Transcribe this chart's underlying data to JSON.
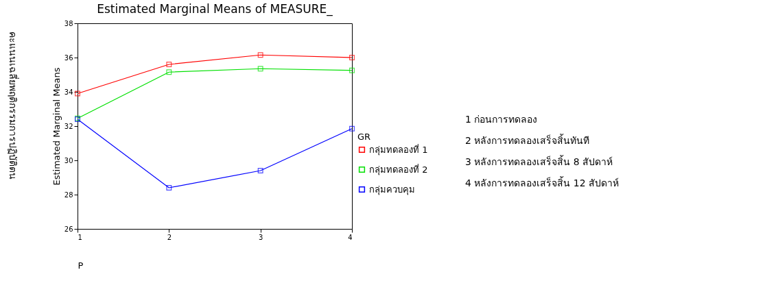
{
  "chart_data": {
    "type": "line",
    "title": "Estimated Marginal Means of MEASURE_",
    "xlabel": "P",
    "ylabel": "Estimated Marginal Means",
    "legend_title": "GR",
    "x": [
      1,
      2,
      3,
      4
    ],
    "xlim": [
      1,
      4
    ],
    "xticks": [
      1,
      2,
      3,
      4
    ],
    "ylim": [
      26,
      38
    ],
    "yticks": [
      26,
      28,
      30,
      32,
      34,
      36,
      38
    ],
    "series": [
      {
        "name": "กลุ่มทดลองที่ 1",
        "color": "#ff0000",
        "values": [
          33.9,
          35.6,
          36.15,
          36.0
        ]
      },
      {
        "name": "กลุ่มทดลองที่ 2",
        "color": "#00e000",
        "values": [
          32.45,
          35.15,
          35.35,
          35.25
        ]
      },
      {
        "name": "กลุ่มควบคุม",
        "color": "#0000ff",
        "values": [
          32.4,
          28.4,
          29.4,
          31.85
        ]
      }
    ],
    "marker": "square",
    "line_style": "solid",
    "grid": false,
    "legend": "right",
    "annotations": [
      "คะแนนเฉลี่ยพฤติกรรมการปฏิบัติตน",
      "1    ก่อนการทดลอง",
      "2    หลังการทดลองเสร็จสิ้นทันที",
      "3   หลังการทดลองเสร็จสิ้น 8 สัปดาห์",
      "4    หลังการทดลองเสร็จสิ้น 12 สัปดาห์"
    ]
  }
}
